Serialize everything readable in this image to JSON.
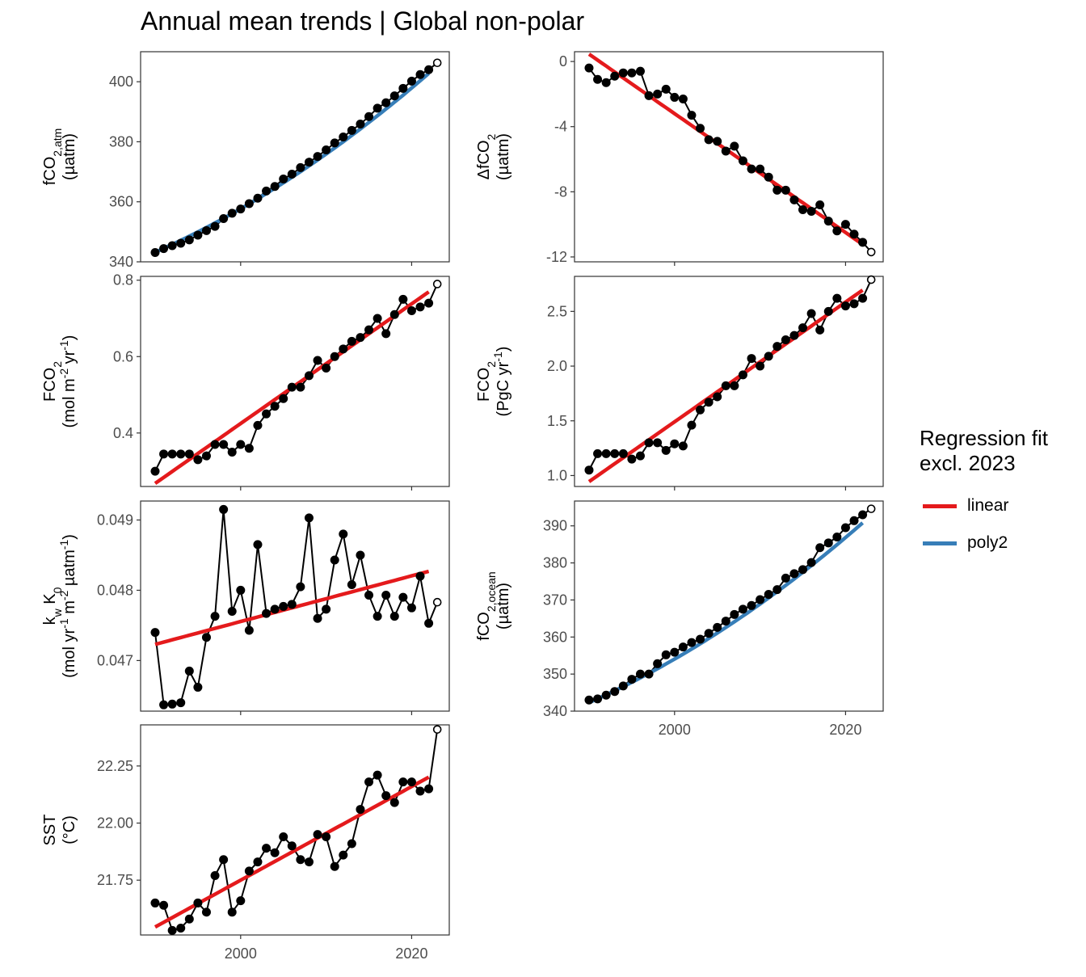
{
  "title": "Annual mean trends | Global non-polar",
  "legend": {
    "title": "Regression fit\nexcl. 2023",
    "items": [
      {
        "label": "linear",
        "color": "#e41a1c"
      },
      {
        "label": "poly2",
        "color": "#377eb8"
      }
    ]
  },
  "colors": {
    "linear": "#e41a1c",
    "poly2": "#377eb8",
    "points": "#000000",
    "axis_text": "#4d4d4d"
  },
  "chart_data": [
    {
      "id": "fco2-atm",
      "type": "line",
      "ylabel": [
        [
          {
            "t": "fCO"
          },
          {
            "t": "2,atm",
            "sub": true
          }
        ],
        [
          {
            "t": "(µatm)"
          }
        ]
      ],
      "x": [
        1990,
        1991,
        1992,
        1993,
        1994,
        1995,
        1996,
        1997,
        1998,
        1999,
        2000,
        2001,
        2002,
        2003,
        2004,
        2005,
        2006,
        2007,
        2008,
        2009,
        2010,
        2011,
        2012,
        2013,
        2014,
        2015,
        2016,
        2017,
        2018,
        2019,
        2020,
        2021,
        2022,
        2023
      ],
      "y": [
        343.1,
        344.4,
        345.4,
        346.2,
        347.3,
        348.9,
        350.4,
        351.8,
        354.4,
        356.2,
        357.6,
        359.4,
        361.2,
        363.6,
        365.1,
        367.6,
        369.2,
        371.4,
        373.2,
        375.1,
        377.3,
        379.6,
        381.6,
        383.8,
        385.9,
        388.4,
        391.2,
        393.0,
        395.3,
        397.8,
        400.2,
        402.4,
        404.0,
        406.3
      ],
      "ylim": [
        340,
        410
      ],
      "yticks": [
        340,
        360,
        380,
        400
      ],
      "ytick_labels": [
        "340",
        "360",
        "380",
        "400"
      ],
      "fit": {
        "type": "poly2",
        "x0": 1990,
        "coef": [
          343.2,
          1.26,
          0.0188
        ],
        "range": [
          1990,
          2022
        ]
      }
    },
    {
      "id": "delta-fco2",
      "type": "line",
      "ylabel": [
        [
          {
            "t": "ΔfCO"
          },
          {
            "t": "2",
            "sub": true
          }
        ],
        [
          {
            "t": "(µatm)"
          }
        ]
      ],
      "x": [
        1990,
        1991,
        1992,
        1993,
        1994,
        1995,
        1996,
        1997,
        1998,
        1999,
        2000,
        2001,
        2002,
        2003,
        2004,
        2005,
        2006,
        2007,
        2008,
        2009,
        2010,
        2011,
        2012,
        2013,
        2014,
        2015,
        2016,
        2017,
        2018,
        2019,
        2020,
        2021,
        2022,
        2023
      ],
      "y": [
        -0.4,
        -1.1,
        -1.3,
        -0.9,
        -0.7,
        -0.7,
        -0.6,
        -2.1,
        -2.0,
        -1.7,
        -2.2,
        -2.3,
        -3.3,
        -4.1,
        -4.8,
        -4.9,
        -5.5,
        -5.2,
        -6.1,
        -6.6,
        -6.6,
        -7.1,
        -7.9,
        -7.9,
        -8.5,
        -9.1,
        -9.2,
        -8.8,
        -9.8,
        -10.4,
        -10.0,
        -10.6,
        -11.1,
        -11.7
      ],
      "ylim": [
        -12.3,
        0.6
      ],
      "yticks": [
        -12,
        -8,
        -4,
        0
      ],
      "ytick_labels": [
        "-12",
        "-8",
        "-4",
        "0"
      ],
      "fit": {
        "type": "linear",
        "x0": 1990,
        "coef": [
          0.45,
          -0.365
        ],
        "range": [
          1990,
          2022
        ]
      }
    },
    {
      "id": "fco2-flux-area",
      "type": "line",
      "ylabel": [
        [
          {
            "t": "FCO"
          },
          {
            "t": "2",
            "sub": true
          }
        ],
        [
          {
            "t": "(mol m"
          },
          {
            "t": "-2",
            "sup": true
          },
          {
            "t": " yr"
          },
          {
            "t": "-1",
            "sup": true
          },
          {
            "t": ")"
          }
        ]
      ],
      "x": [
        1990,
        1991,
        1992,
        1993,
        1994,
        1995,
        1996,
        1997,
        1998,
        1999,
        2000,
        2001,
        2002,
        2003,
        2004,
        2005,
        2006,
        2007,
        2008,
        2009,
        2010,
        2011,
        2012,
        2013,
        2014,
        2015,
        2016,
        2017,
        2018,
        2019,
        2020,
        2021,
        2022,
        2023
      ],
      "y": [
        0.3,
        0.345,
        0.345,
        0.345,
        0.345,
        0.33,
        0.34,
        0.37,
        0.37,
        0.35,
        0.37,
        0.36,
        0.42,
        0.45,
        0.47,
        0.49,
        0.52,
        0.52,
        0.55,
        0.59,
        0.57,
        0.6,
        0.62,
        0.64,
        0.65,
        0.67,
        0.7,
        0.66,
        0.71,
        0.75,
        0.72,
        0.73,
        0.74,
        0.79
      ],
      "ylim": [
        0.26,
        0.81
      ],
      "yticks": [
        0.4,
        0.6,
        0.8
      ],
      "ytick_labels": [
        "0.4",
        "0.6",
        "0.8"
      ],
      "fit": {
        "type": "linear",
        "x0": 1990,
        "coef": [
          0.268,
          0.01567
        ],
        "range": [
          1990,
          2022
        ]
      }
    },
    {
      "id": "fco2-flux-total",
      "type": "line",
      "ylabel": [
        [
          {
            "t": "FCO"
          },
          {
            "t": "2",
            "sub": true
          }
        ],
        [
          {
            "t": "(PgC yr"
          },
          {
            "t": "-1",
            "sup": true
          },
          {
            "t": ")"
          }
        ]
      ],
      "x": [
        1990,
        1991,
        1992,
        1993,
        1994,
        1995,
        1996,
        1997,
        1998,
        1999,
        2000,
        2001,
        2002,
        2003,
        2004,
        2005,
        2006,
        2007,
        2008,
        2009,
        2010,
        2011,
        2012,
        2013,
        2014,
        2015,
        2016,
        2017,
        2018,
        2019,
        2020,
        2021,
        2022,
        2023
      ],
      "y": [
        1.05,
        1.2,
        1.2,
        1.2,
        1.2,
        1.15,
        1.18,
        1.3,
        1.3,
        1.23,
        1.29,
        1.27,
        1.46,
        1.6,
        1.67,
        1.72,
        1.82,
        1.82,
        1.92,
        2.07,
        2.0,
        2.09,
        2.18,
        2.24,
        2.28,
        2.35,
        2.48,
        2.33,
        2.5,
        2.62,
        2.55,
        2.57,
        2.62,
        2.79
      ],
      "ylim": [
        0.9,
        2.82
      ],
      "yticks": [
        1.0,
        1.5,
        2.0,
        2.5
      ],
      "ytick_labels": [
        "1.0",
        "1.5",
        "2.0",
        "2.5"
      ],
      "fit": {
        "type": "linear",
        "x0": 1990,
        "coef": [
          0.944,
          0.0547
        ],
        "range": [
          1990,
          2022
        ]
      }
    },
    {
      "id": "kw-k0",
      "type": "line",
      "ylabel": [
        [
          {
            "t": "k"
          },
          {
            "t": "w",
            "sub": true
          },
          {
            "t": " K"
          },
          {
            "t": "0",
            "sub": true
          }
        ],
        [
          {
            "t": "(mol yr"
          },
          {
            "t": "-1",
            "sup": true
          },
          {
            "t": " m"
          },
          {
            "t": "-2",
            "sup": true
          },
          {
            "t": " µatm"
          },
          {
            "t": "-1",
            "sup": true
          },
          {
            "t": ")"
          }
        ]
      ],
      "x": [
        1990,
        1991,
        1992,
        1993,
        1994,
        1995,
        1996,
        1997,
        1998,
        1999,
        2000,
        2001,
        2002,
        2003,
        2004,
        2005,
        2006,
        2007,
        2008,
        2009,
        2010,
        2011,
        2012,
        2013,
        2014,
        2015,
        2016,
        2017,
        2018,
        2019,
        2020,
        2021,
        2022,
        2023
      ],
      "y": [
        0.0474,
        0.04637,
        0.04638,
        0.0464,
        0.04685,
        0.04662,
        0.04733,
        0.04763,
        0.04915,
        0.0477,
        0.048,
        0.04743,
        0.04865,
        0.04767,
        0.04773,
        0.04777,
        0.0478,
        0.04805,
        0.04903,
        0.0476,
        0.04773,
        0.04843,
        0.0488,
        0.04808,
        0.0485,
        0.04793,
        0.04763,
        0.04793,
        0.04763,
        0.0479,
        0.04775,
        0.0482,
        0.04753,
        0.04783
      ],
      "ylim": [
        0.04628,
        0.04927
      ],
      "yticks": [
        0.047,
        0.048,
        0.049
      ],
      "ytick_labels": [
        "0.047",
        "0.048",
        "0.049"
      ],
      "fit": {
        "type": "linear",
        "x0": 1990,
        "coef": [
          0.04723,
          3.25e-05
        ],
        "range": [
          1990,
          2022
        ]
      }
    },
    {
      "id": "fco2-ocean",
      "type": "line",
      "ylabel": [
        [
          {
            "t": "fCO"
          },
          {
            "t": "2,ocean",
            "sub": true
          }
        ],
        [
          {
            "t": "(µatm)"
          }
        ]
      ],
      "x": [
        1990,
        1991,
        1992,
        1993,
        1994,
        1995,
        1996,
        1997,
        1998,
        1999,
        2000,
        2001,
        2002,
        2003,
        2004,
        2005,
        2006,
        2007,
        2008,
        2009,
        2010,
        2011,
        2012,
        2013,
        2014,
        2015,
        2016,
        2017,
        2018,
        2019,
        2020,
        2021,
        2022,
        2023
      ],
      "y": [
        343.0,
        343.3,
        344.3,
        345.3,
        346.8,
        348.6,
        350.0,
        350.0,
        352.8,
        355.2,
        355.9,
        357.3,
        358.5,
        359.4,
        361.0,
        362.6,
        364.3,
        366.1,
        367.5,
        368.5,
        370.1,
        371.5,
        372.8,
        375.9,
        377.1,
        378.2,
        380.1,
        384.1,
        385.4,
        387.0,
        389.5,
        391.4,
        393.0,
        394.6
      ],
      "ylim": [
        340,
        396.7
      ],
      "yticks": [
        340,
        350,
        360,
        370,
        380,
        390
      ],
      "ytick_labels": [
        "340",
        "350",
        "360",
        "370",
        "380",
        "390"
      ],
      "fit": {
        "type": "poly2",
        "x0": 1990,
        "coef": [
          342.3,
          1.02,
          0.0155
        ],
        "range": [
          1990,
          2022
        ]
      }
    },
    {
      "id": "sst",
      "type": "line",
      "ylabel": [
        [
          {
            "t": "SST"
          }
        ],
        [
          {
            "t": "(°C)"
          }
        ]
      ],
      "x": [
        1990,
        1991,
        1992,
        1993,
        1994,
        1995,
        1996,
        1997,
        1998,
        1999,
        2000,
        2001,
        2002,
        2003,
        2004,
        2005,
        2006,
        2007,
        2008,
        2009,
        2010,
        2011,
        2012,
        2013,
        2014,
        2015,
        2016,
        2017,
        2018,
        2019,
        2020,
        2021,
        2022,
        2023
      ],
      "y": [
        21.65,
        21.64,
        21.53,
        21.54,
        21.58,
        21.65,
        21.61,
        21.77,
        21.84,
        21.61,
        21.66,
        21.79,
        21.83,
        21.89,
        21.87,
        21.94,
        21.9,
        21.84,
        21.83,
        21.95,
        21.94,
        21.81,
        21.86,
        21.91,
        22.06,
        22.18,
        22.21,
        22.12,
        22.09,
        22.18,
        22.18,
        22.14,
        22.15,
        22.41
      ],
      "ylim": [
        21.51,
        22.43
      ],
      "yticks": [
        21.75,
        22.0,
        22.25
      ],
      "ytick_labels": [
        "21.75",
        "22.00",
        "22.25"
      ],
      "fit": {
        "type": "linear",
        "x0": 1990,
        "coef": [
          21.545,
          0.0205
        ],
        "range": [
          1990,
          2022
        ]
      }
    }
  ],
  "x_axis": {
    "lim": [
      1988.3,
      2024.4
    ],
    "ticks": [
      2000,
      2020
    ],
    "tick_labels": [
      "2000",
      "2020"
    ]
  }
}
